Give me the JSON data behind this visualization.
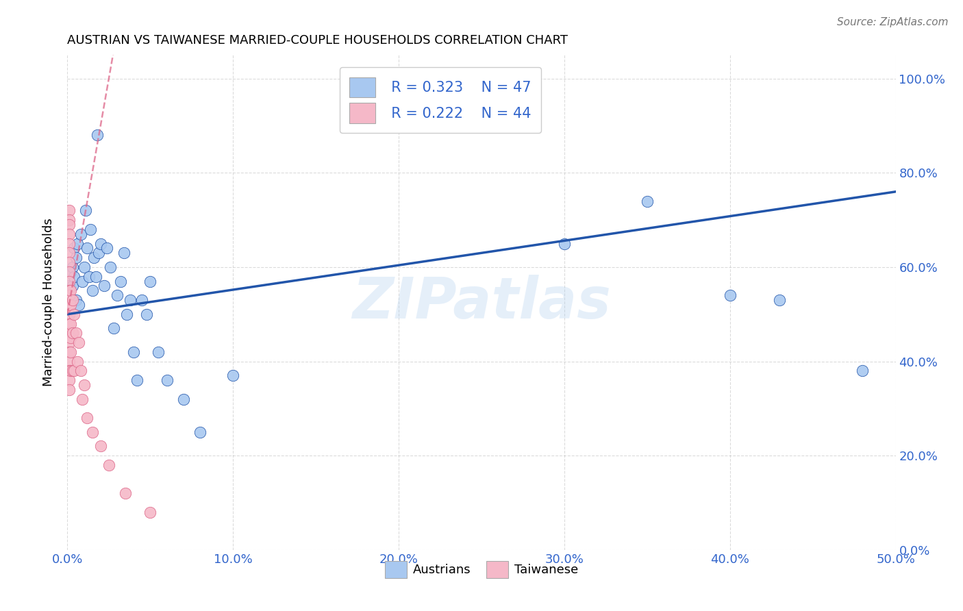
{
  "title": "AUSTRIAN VS TAIWANESE MARRIED-COUPLE HOUSEHOLDS CORRELATION CHART",
  "source": "Source: ZipAtlas.com",
  "ylabel": "Married-couple Households",
  "watermark": "ZIPatlas",
  "legend_blue_r": "R = 0.323",
  "legend_blue_n": "N = 47",
  "legend_pink_r": "R = 0.222",
  "legend_pink_n": "N = 44",
  "blue_color": "#a8c8f0",
  "pink_color": "#f5b8c8",
  "blue_line_color": "#2255aa",
  "pink_line_color": "#dd6688",
  "austrians_x": [
    0.001,
    0.002,
    0.003,
    0.003,
    0.004,
    0.004,
    0.005,
    0.005,
    0.006,
    0.007,
    0.008,
    0.009,
    0.01,
    0.011,
    0.012,
    0.013,
    0.014,
    0.015,
    0.016,
    0.017,
    0.018,
    0.019,
    0.02,
    0.022,
    0.024,
    0.026,
    0.028,
    0.03,
    0.032,
    0.034,
    0.036,
    0.038,
    0.04,
    0.042,
    0.045,
    0.048,
    0.05,
    0.055,
    0.06,
    0.07,
    0.08,
    0.1,
    0.3,
    0.35,
    0.4,
    0.43,
    0.48
  ],
  "austrians_y": [
    0.56,
    0.59,
    0.56,
    0.6,
    0.64,
    0.58,
    0.62,
    0.53,
    0.65,
    0.52,
    0.67,
    0.57,
    0.6,
    0.72,
    0.64,
    0.58,
    0.68,
    0.55,
    0.62,
    0.58,
    0.88,
    0.63,
    0.65,
    0.56,
    0.64,
    0.6,
    0.47,
    0.54,
    0.57,
    0.63,
    0.5,
    0.53,
    0.42,
    0.36,
    0.53,
    0.5,
    0.57,
    0.42,
    0.36,
    0.32,
    0.25,
    0.37,
    0.65,
    0.74,
    0.54,
    0.53,
    0.38
  ],
  "taiwanese_x": [
    0.001,
    0.001,
    0.001,
    0.001,
    0.001,
    0.001,
    0.001,
    0.001,
    0.001,
    0.001,
    0.001,
    0.001,
    0.001,
    0.001,
    0.001,
    0.001,
    0.001,
    0.001,
    0.001,
    0.001,
    0.001,
    0.002,
    0.002,
    0.002,
    0.002,
    0.002,
    0.002,
    0.003,
    0.003,
    0.003,
    0.004,
    0.004,
    0.005,
    0.006,
    0.007,
    0.008,
    0.009,
    0.01,
    0.012,
    0.015,
    0.02,
    0.025,
    0.035,
    0.05
  ],
  "taiwanese_y": [
    0.72,
    0.7,
    0.69,
    0.67,
    0.65,
    0.63,
    0.61,
    0.59,
    0.57,
    0.55,
    0.54,
    0.52,
    0.5,
    0.48,
    0.46,
    0.44,
    0.42,
    0.4,
    0.38,
    0.36,
    0.34,
    0.55,
    0.52,
    0.48,
    0.45,
    0.42,
    0.38,
    0.53,
    0.46,
    0.38,
    0.5,
    0.38,
    0.46,
    0.4,
    0.44,
    0.38,
    0.32,
    0.35,
    0.28,
    0.25,
    0.22,
    0.18,
    0.12,
    0.08
  ],
  "xmin": 0.0,
  "xmax": 0.5,
  "ymin": 0.0,
  "ymax": 1.05,
  "xtick_vals": [
    0.0,
    0.1,
    0.2,
    0.3,
    0.4,
    0.5
  ],
  "xtick_labels": [
    "0.0%",
    "10.0%",
    "20.0%",
    "30.0%",
    "40.0%",
    "50.0%"
  ],
  "ytick_vals": [
    0.0,
    0.2,
    0.4,
    0.6,
    0.8,
    1.0
  ],
  "ytick_labels": [
    "0.0%",
    "20.0%",
    "40.0%",
    "60.0%",
    "80.0%",
    "100.0%"
  ]
}
